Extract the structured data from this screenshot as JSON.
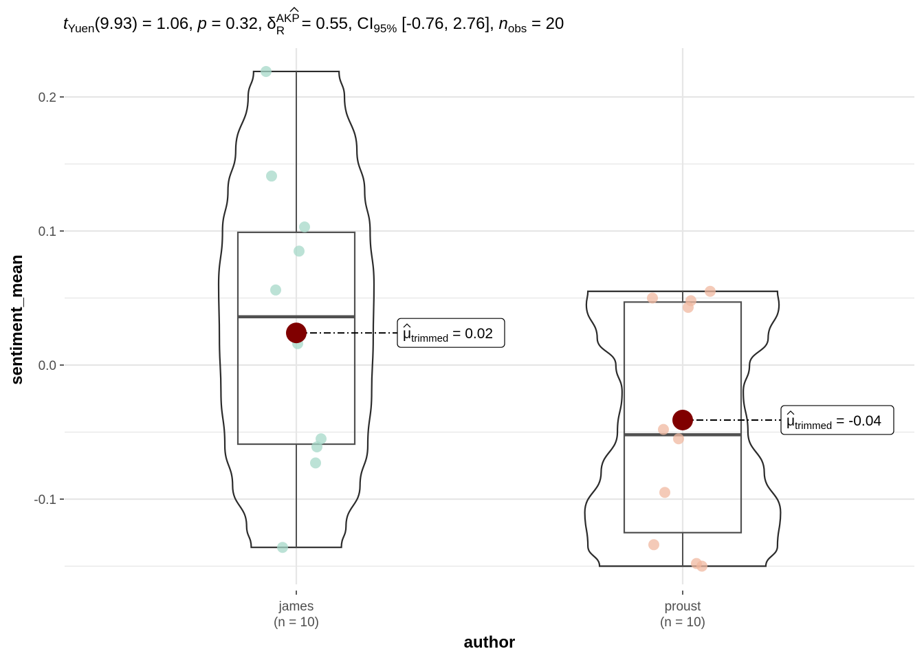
{
  "chart_data": {
    "type": "violin",
    "subtitle": {
      "stat_symbol": "t",
      "stat_sub": "Yuen",
      "df_and_value": "(9.93) = 1.06, ",
      "p_symbol": "p",
      "p_value": " = 0.32, ",
      "effect_symbol": "δ",
      "effect_sup": "AKP",
      "effect_sub": "R",
      "effect_value": " = 0.55, CI",
      "ci_sub": "95%",
      "ci_value": " [-0.76, 2.76], ",
      "n_symbol": "n",
      "n_sub": "obs",
      "n_value": " = 20"
    },
    "xlabel": "author",
    "ylabel": "sentiment_mean",
    "ylim": [
      -0.15,
      0.23
    ],
    "y_ticks": [
      {
        "value": 0.2,
        "label": "0.2"
      },
      {
        "value": 0.1,
        "label": "0.1"
      },
      {
        "value": 0.0,
        "label": "0.0"
      },
      {
        "value": -0.1,
        "label": "-0.1"
      }
    ],
    "grid": true,
    "groups": [
      {
        "name": "james",
        "n_label": "(n = 10)",
        "color": "#a6d8c8",
        "points": [
          0.219,
          0.141,
          0.103,
          0.085,
          0.056,
          0.016,
          -0.055,
          -0.061,
          -0.073,
          -0.136
        ],
        "jitter": [
          -0.22,
          -0.18,
          0.06,
          0.02,
          -0.15,
          0.01,
          0.18,
          0.15,
          0.14,
          -0.1
        ],
        "box": {
          "q1": -0.059,
          "median": 0.036,
          "q3": 0.099,
          "whisker_low": -0.136,
          "whisker_high": 0.219
        },
        "trimmed_mean": 0.024,
        "mean_label_prefix": "μ",
        "mean_label_sub": "trimmed",
        "mean_label_value": " = 0.02"
      },
      {
        "name": "proust",
        "n_label": "(n = 10)",
        "color": "#f0b8a0",
        "points": [
          0.055,
          0.05,
          0.048,
          0.043,
          -0.048,
          -0.055,
          -0.095,
          -0.134,
          -0.148,
          -0.15
        ],
        "jitter": [
          0.2,
          -0.22,
          0.06,
          0.04,
          -0.14,
          -0.03,
          -0.13,
          -0.21,
          0.1,
          0.14
        ],
        "box": {
          "q1": -0.125,
          "median": -0.052,
          "q3": 0.047,
          "whisker_low": -0.15,
          "whisker_high": 0.055
        },
        "trimmed_mean": -0.041,
        "mean_label_prefix": "μ",
        "mean_label_sub": "trimmed",
        "mean_label_value": " = -0.04"
      }
    ],
    "colors": {
      "mean_point": "#800000",
      "violin_stroke": "#2b2b2b",
      "box_stroke": "#505050",
      "grid": "#e6e6e6"
    }
  }
}
